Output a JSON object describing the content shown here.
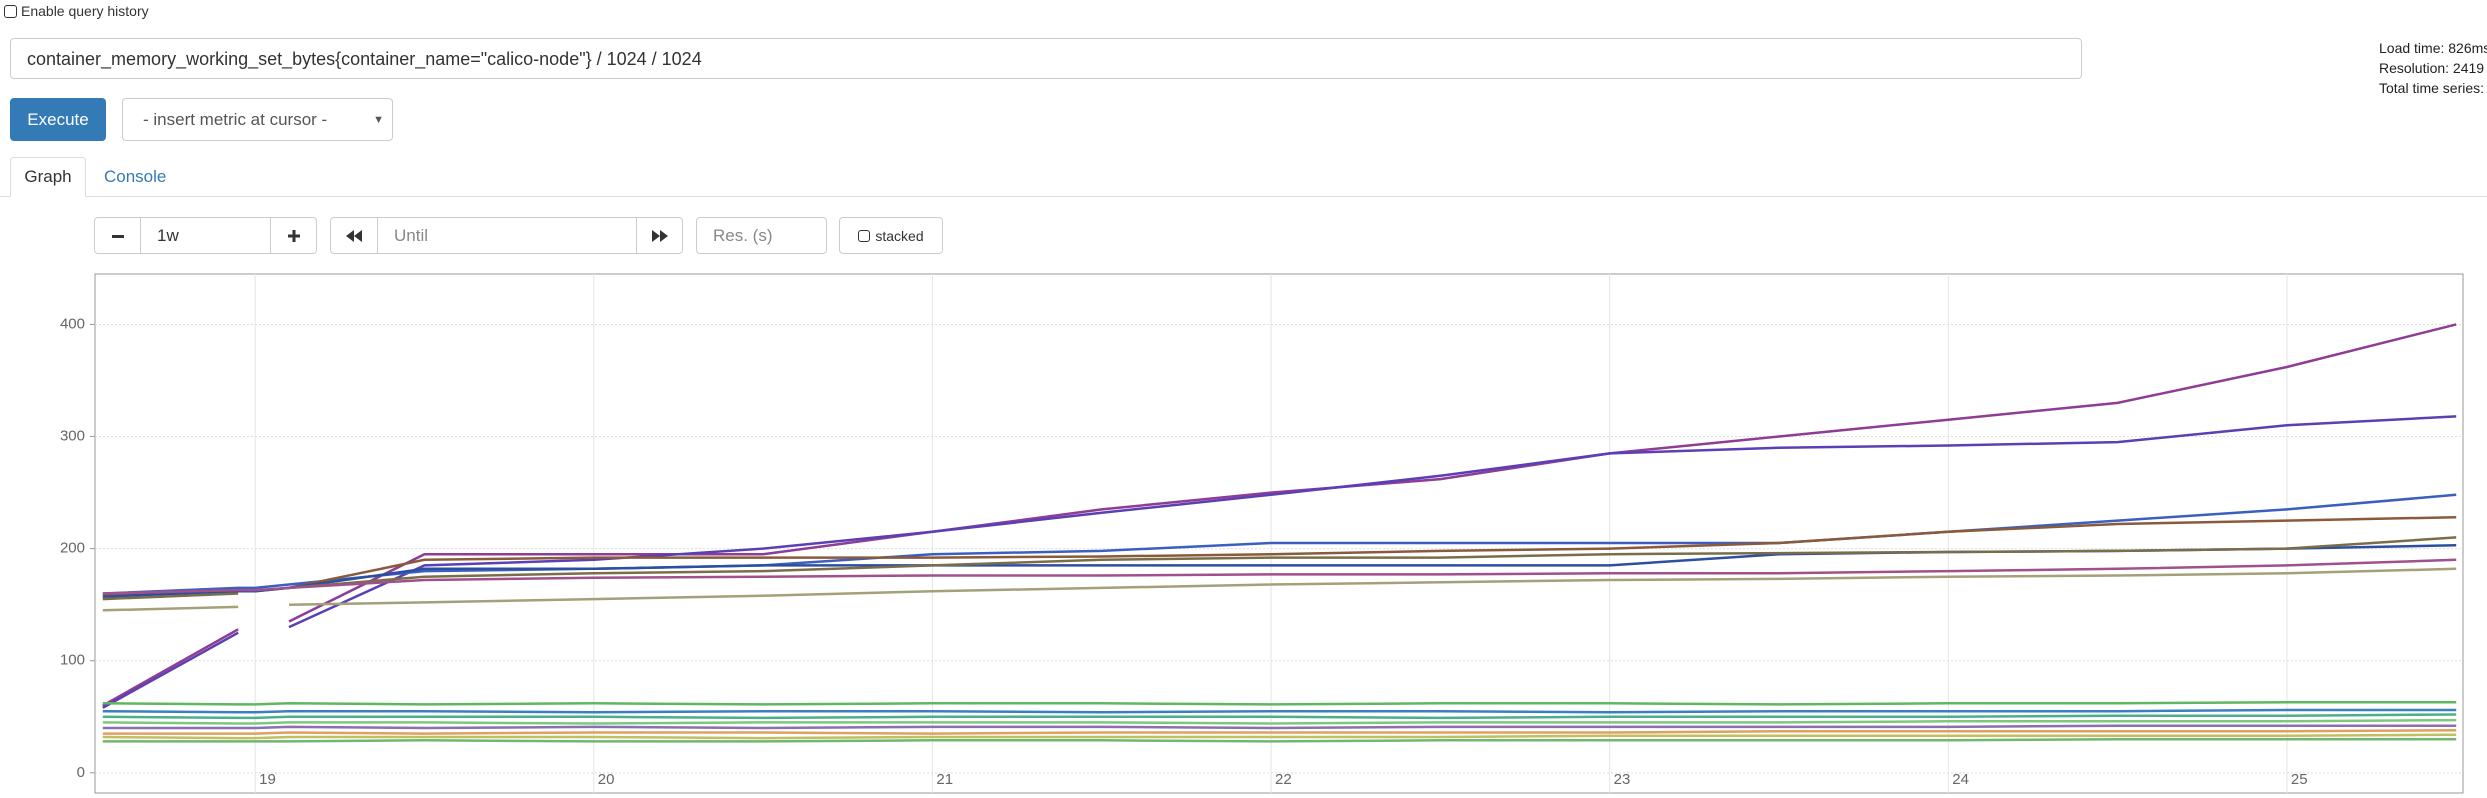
{
  "ui": {
    "history_label": "Enable query history",
    "query": "container_memory_working_set_bytes{container_name=\"calico-node\"} / 1024 / 1024",
    "execute": "Execute",
    "insert_metric": "- insert metric at cursor -",
    "tabs": [
      "Graph",
      "Console"
    ],
    "range": "1w",
    "until": "Until",
    "resolution": "Res. (s)",
    "stacked": "stacked",
    "stats": [
      "Load time: 826ms",
      "Resolution: 2419",
      "Total time series:"
    ]
  },
  "chart_data": {
    "type": "line",
    "x": [
      18.55,
      18.95,
      19.0,
      19.1,
      19.5,
      20.0,
      20.5,
      21.0,
      21.5,
      22.0,
      22.5,
      23.0,
      23.5,
      24.0,
      24.5,
      25.0,
      25.5
    ],
    "xlim": [
      18.527,
      25.52
    ],
    "xticks": [
      19,
      20,
      21,
      22,
      23,
      24,
      25
    ],
    "ylim": [
      -18,
      445
    ],
    "yticks": [
      0,
      100,
      200,
      300,
      400
    ],
    "grid": true,
    "series": [
      {
        "color": "#8e3c94",
        "values": [
          60,
          128,
          null,
          135,
          195,
          195,
          195,
          215,
          235,
          250,
          262,
          285,
          300,
          315,
          330,
          362,
          400
        ]
      },
      {
        "color": "#5b3fb4",
        "values": [
          58,
          125,
          null,
          130,
          185,
          190,
          200,
          215,
          232,
          248,
          265,
          285,
          290,
          292,
          295,
          310,
          318
        ]
      },
      {
        "color": "#3b5fc0",
        "values": [
          160,
          165,
          165,
          168,
          180,
          182,
          185,
          195,
          198,
          205,
          205,
          205,
          205,
          215,
          225,
          235,
          248
        ]
      },
      {
        "color": "#8a5a3c",
        "values": [
          158,
          162,
          162,
          165,
          190,
          192,
          192,
          192,
          193,
          195,
          198,
          200,
          205,
          215,
          222,
          225,
          228
        ]
      },
      {
        "color": "#2c4fa0",
        "values": [
          157,
          162,
          162,
          165,
          182,
          182,
          185,
          185,
          185,
          185,
          185,
          185,
          195,
          197,
          198,
          200,
          203
        ]
      },
      {
        "color": "#7a6e4a",
        "values": [
          155,
          160,
          null,
          165,
          175,
          178,
          180,
          185,
          190,
          192,
          192,
          195,
          196,
          197,
          198,
          200,
          210
        ]
      },
      {
        "color": "#a0508a",
        "values": [
          160,
          163,
          163,
          165,
          172,
          174,
          175,
          176,
          176,
          177,
          177,
          178,
          178,
          180,
          182,
          185,
          190
        ]
      },
      {
        "color": "#a3a07a",
        "values": [
          145,
          148,
          null,
          150,
          152,
          155,
          158,
          162,
          165,
          168,
          170,
          172,
          173,
          175,
          176,
          178,
          182
        ]
      },
      {
        "color": "#5fb85f",
        "values": [
          62,
          61,
          61,
          62,
          61,
          62,
          61,
          62,
          62,
          61,
          62,
          62,
          61,
          62,
          62,
          63,
          63
        ]
      },
      {
        "color": "#3a7fc0",
        "values": [
          55,
          54,
          54,
          55,
          55,
          54,
          55,
          55,
          54,
          55,
          55,
          54,
          55,
          55,
          55,
          56,
          56
        ]
      },
      {
        "color": "#4caf8a",
        "values": [
          50,
          49,
          49,
          50,
          50,
          50,
          49,
          50,
          50,
          50,
          49,
          50,
          50,
          50,
          51,
          51,
          52
        ]
      },
      {
        "color": "#7ec87e",
        "values": [
          45,
          44,
          44,
          45,
          45,
          44,
          45,
          45,
          45,
          44,
          45,
          45,
          45,
          46,
          46,
          46,
          47
        ]
      },
      {
        "color": "#8b6fb0",
        "values": [
          40,
          40,
          40,
          41,
          40,
          41,
          40,
          41,
          41,
          40,
          41,
          41,
          41,
          41,
          42,
          42,
          42
        ]
      },
      {
        "color": "#e0a060",
        "values": [
          35,
          35,
          35,
          36,
          35,
          36,
          36,
          35,
          36,
          36,
          36,
          36,
          37,
          37,
          37,
          37,
          38
        ]
      },
      {
        "color": "#c0c060",
        "values": [
          32,
          31,
          31,
          32,
          32,
          32,
          31,
          32,
          32,
          32,
          32,
          33,
          33,
          33,
          33,
          33,
          34
        ]
      },
      {
        "color": "#6fb86f",
        "values": [
          28,
          28,
          28,
          28,
          29,
          28,
          28,
          29,
          29,
          28,
          29,
          29,
          29,
          29,
          30,
          30,
          30
        ]
      }
    ]
  }
}
